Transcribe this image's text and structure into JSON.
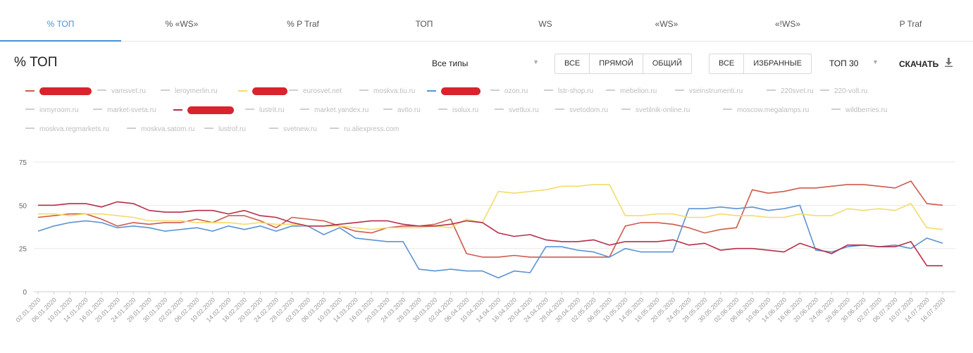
{
  "tabs": [
    "% ТОП",
    "% «WS»",
    "% P Traf",
    "ТОП",
    "WS",
    "«WS»",
    "«!WS»",
    "P Traf"
  ],
  "page_title": "% ТОП",
  "type_filter": {
    "value": "Все типы",
    "caret": "▼"
  },
  "match_buttons": [
    "ВСЕ",
    "ПРЯМОЙ",
    "ОБЩИЙ"
  ],
  "scope_buttons": [
    "ВСЕ",
    "ИЗБРАННЫЕ"
  ],
  "top_filter": {
    "value": "ТОП 30",
    "caret": "▼"
  },
  "download": {
    "label": "СКАЧАТЬ",
    "icon": "download-icon"
  },
  "colors": {
    "accent": "#4a90d9",
    "series_red": "#cf5a4c",
    "series_blue": "#5b93d3",
    "series_yellow": "#f3dc6b",
    "series_crimson": "#b62e4a",
    "redaction": "#d9232d"
  },
  "legend": {
    "row1": [
      "",
      "vamsvet.ru",
      "leroymerlin.ru",
      "",
      "eurosvet.net",
      "moskva.tiu.ru",
      "",
      "ozon.ru",
      "lstr-shop.ru",
      "mebelion.ru",
      "vseinstrumenti.ru",
      "220svet.ru",
      "220-volt.ru"
    ],
    "row2": [
      "inmyroom.ru",
      "market-sveta.ru",
      "",
      "lustrit.ru",
      "market.yandex.ru",
      "avito.ru",
      "isolux.ru",
      "svetlux.ru",
      "svetodom.ru",
      "svetilnik-online.ru",
      "moscow.megalamps.ru",
      "wildberries.ru"
    ],
    "row3": [
      "moskva.regmarkets.ru",
      "moskva.satom.ru",
      "lustrof.ru",
      "svetnew.ru",
      "ru.aliexpress.com"
    ]
  },
  "chart_data": {
    "type": "line",
    "yticks": [
      "0",
      "25",
      "50",
      "75"
    ],
    "ylim": [
      0,
      75
    ],
    "grid": true,
    "x": [
      "02.01.2020",
      "06.01.2020",
      "10.01.2020",
      "14.01.2020",
      "16.01.2020",
      "20.01.2020",
      "24.01.2020",
      "28.01.2020",
      "30.01.2020",
      "02.02.2020",
      "06.02.2020",
      "10.02.2020",
      "14.02.2020",
      "16.02.2020",
      "20.02.2020",
      "24.02.2020",
      "28.02.2020",
      "02.03.2020",
      "06.03.2020",
      "10.03.2020",
      "14.03.2020",
      "16.03.2020",
      "20.03.2020",
      "24.03.2020",
      "28.03.2020",
      "30.03.2020",
      "02.04.2020",
      "06.04.2020",
      "10.04.2020",
      "14.04.2020",
      "16.04.2020",
      "20.04.2020",
      "24.04.2020",
      "28.04.2020",
      "30.04.2020",
      "02.05.2020",
      "06.05.2020",
      "10.05.2020",
      "14.05.2020",
      "16.05.2020",
      "20.05.2020",
      "24.05.2020",
      "28.05.2020",
      "30.05.2020",
      "02.06.2020",
      "06.06.2020",
      "10.06.2020",
      "14.06.2020",
      "16.06.2020",
      "20.06.2020",
      "24.06.2020",
      "28.06.2020",
      "30.06.2020",
      "02.07.2020",
      "06.07.2020",
      "10.07.2020",
      "14.07.2020",
      "16.07.2020"
    ],
    "series": [
      {
        "color": "#cf5a4c",
        "values": [
          43,
          44,
          45,
          45,
          42,
          38,
          40,
          39,
          40,
          40,
          42,
          40,
          44,
          44,
          41,
          37,
          43,
          42,
          41,
          38,
          35,
          34,
          37,
          38,
          38,
          39,
          42,
          22,
          20,
          20,
          21,
          20,
          20,
          20,
          20,
          20,
          20,
          38,
          40,
          40,
          39,
          37,
          34,
          36,
          37,
          59,
          57,
          58,
          60,
          60,
          61,
          62,
          62,
          61,
          60,
          64,
          51,
          50
        ]
      },
      {
        "color": "#5b93d3",
        "values": [
          35,
          38,
          40,
          41,
          40,
          37,
          38,
          37,
          35,
          36,
          37,
          35,
          38,
          36,
          38,
          35,
          38,
          38,
          33,
          37,
          31,
          30,
          29,
          29,
          13,
          12,
          13,
          12,
          12,
          8,
          12,
          11,
          26,
          26,
          24,
          23,
          20,
          25,
          23,
          23,
          23,
          48,
          48,
          49,
          48,
          49,
          47,
          48,
          50,
          24,
          23,
          26,
          27,
          26,
          27,
          25,
          31,
          28
        ]
      },
      {
        "color": "#f3dc6b",
        "values": [
          45,
          45,
          44,
          45,
          45,
          44,
          43,
          41,
          41,
          41,
          40,
          40,
          40,
          39,
          40,
          39,
          39,
          38,
          38,
          38,
          37,
          36,
          37,
          37,
          37,
          38,
          37,
          42,
          40,
          58,
          57,
          58,
          59,
          61,
          61,
          62,
          62,
          44,
          44,
          45,
          45,
          43,
          43,
          45,
          44,
          44,
          43,
          43,
          45,
          44,
          44,
          48,
          47,
          48,
          47,
          51,
          37,
          36
        ]
      },
      {
        "color": "#b62e4a",
        "values": [
          50,
          50,
          51,
          51,
          49,
          52,
          51,
          47,
          46,
          46,
          47,
          47,
          45,
          47,
          44,
          43,
          40,
          38,
          38,
          39,
          40,
          41,
          41,
          39,
          38,
          38,
          39,
          41,
          40,
          34,
          32,
          33,
          30,
          29,
          29,
          30,
          27,
          29,
          29,
          29,
          30,
          27,
          28,
          24,
          25,
          25,
          24,
          23,
          28,
          25,
          22,
          27,
          27,
          26,
          26,
          29,
          15,
          15
        ]
      }
    ]
  }
}
